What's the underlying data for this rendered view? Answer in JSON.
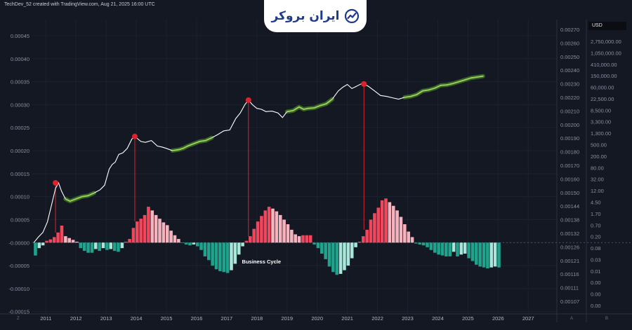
{
  "header": {
    "credit": "TechDev_52 created with TradingView.com, Aug 21, 2025 16:00 UTC",
    "brand_name": "ایران بروکر",
    "currency_label": "USD"
  },
  "colors": {
    "background": "#141823",
    "positive_dark": "#f0475d",
    "positive_light": "#f5b3bd",
    "negative_dark": "#1fa38c",
    "negative_light": "#a8e6da",
    "price_line": "#ffffff",
    "highlight": "#9bd65a",
    "peak_marker": "#e0202c"
  },
  "chart_data": {
    "type": "bar",
    "annotation": "Business Cycle",
    "x_tick_labels": [
      "2011",
      "2012",
      "2013",
      "2014",
      "2015",
      "2016",
      "2017",
      "2018",
      "2019",
      "2020",
      "2021",
      "2022",
      "2023",
      "2024",
      "2025",
      "2026",
      "2027"
    ],
    "xlim": [
      2010.55,
      2027.95
    ],
    "left_axis": {
      "ticks": [
        "0.00045",
        "0.00040",
        "0.00035",
        "0.00030",
        "0.00025",
        "0.00020",
        "0.00015",
        "0.00010",
        "0.00005",
        "-0.00000",
        "-0.00005",
        "-0.00010",
        "-0.00015"
      ],
      "ylim": [
        -0.000155,
        0.000485
      ]
    },
    "middle_axis_ticks": [
      "0.00270",
      "0.00260",
      "0.00250",
      "0.00240",
      "0.00230",
      "0.00220",
      "0.00210",
      "0.00200",
      "0.00190",
      "0.00180",
      "0.00170",
      "0.00160",
      "0.00150",
      "0.00144",
      "0.00138",
      "0.00132",
      "0.00126",
      "0.00121",
      "0.00116",
      "0.00111",
      "0.00107"
    ],
    "right_axis_ticks": [
      "2,750,000.00",
      "1,050,000.00",
      "410,000.00",
      "150,000.00",
      "60,000.00",
      "22,500.00",
      "8,500.00",
      "3,300.00",
      "1,300.00",
      "500.00",
      "200.00",
      "80.00",
      "32.00",
      "12.00",
      "4.50",
      "1.70",
      "0.70",
      "0.20",
      "0.08",
      "0.03",
      "0.01",
      "0.00",
      "0.00",
      "0.00"
    ],
    "corner_labels": [
      "Z",
      "A",
      "B"
    ],
    "series": [
      {
        "type": "bar",
        "x_start": 2010.6,
        "bar_step": 0.125,
        "values": [
          -2.8e-05,
          -1.2e-05,
          -6e-06,
          4e-06,
          7e-06,
          1.2e-05,
          2.2e-05,
          3.7e-05,
          1.4e-05,
          1e-05,
          6e-06,
          2e-06,
          -1.2e-05,
          -1.8e-05,
          -2.2e-05,
          -2.2e-05,
          -1.4e-05,
          -1.8e-05,
          -1.2e-05,
          -1.6e-05,
          -1.4e-05,
          -1.8e-05,
          -2e-05,
          -1.2e-05,
          2e-06,
          8e-06,
          3.2e-05,
          4.6e-05,
          5.2e-05,
          6e-05,
          7.8e-05,
          7e-05,
          6e-05,
          5.2e-05,
          4.4e-05,
          3.8e-05,
          2.6e-05,
          1.6e-05,
          8e-06,
          -1e-06,
          -4e-06,
          -6e-06,
          -4e-06,
          -8e-06,
          -1.6e-05,
          -3e-05,
          -3.8e-05,
          -5e-05,
          -5.8e-05,
          -6.2e-05,
          -6.4e-05,
          -6.6e-05,
          -6e-05,
          -4.6e-05,
          -2.6e-05,
          -8e-06,
          4e-06,
          1.4e-05,
          3e-05,
          4.6e-05,
          5.8e-05,
          7e-05,
          7.8e-05,
          7.4e-05,
          6.8e-05,
          6e-05,
          5e-05,
          4e-05,
          2.8e-05,
          1.8e-05,
          1.4e-05,
          1.6e-05,
          1.6e-05,
          1.6e-05,
          -4e-06,
          -1.2e-05,
          -2.4e-05,
          -3.6e-05,
          -5.2e-05,
          -6.4e-05,
          -7e-05,
          -6.8e-05,
          -6e-05,
          -5e-05,
          -3.4e-05,
          -1e-05,
          2e-06,
          1.4e-05,
          2.8e-05,
          5e-05,
          6.4e-05,
          7.6e-05,
          9.2e-05,
          9.6e-05,
          8.8e-05,
          8e-05,
          7e-05,
          5.6e-05,
          4e-05,
          2.4e-05,
          1.2e-05,
          -2e-06,
          -4e-06,
          -6e-06,
          -1e-05,
          -1.6e-05,
          -2.2e-05,
          -2.6e-05,
          -2.8e-05,
          -3e-05,
          -3e-05,
          -2e-05,
          -3e-05,
          -2.6e-05,
          -2.4e-05,
          -3.4e-05,
          -4e-05,
          -4.8e-05,
          -5.2e-05,
          -5.4e-05,
          -5.6e-05,
          -5.4e-05,
          -5.2e-05,
          -5.4e-05
        ]
      },
      {
        "type": "line",
        "x": [
          2010.6,
          2010.75,
          2010.9,
          2011.05,
          2011.2,
          2011.32,
          2011.42,
          2011.52,
          2011.65,
          2011.8,
          2012.0,
          2012.2,
          2012.4,
          2012.6,
          2012.8,
          2012.95,
          2013.1,
          2013.2,
          2013.3,
          2013.42,
          2013.55,
          2013.7,
          2013.85,
          2013.95,
          2014.15,
          2014.3,
          2014.5,
          2014.7,
          2014.85,
          2015.0,
          2015.2,
          2015.4,
          2015.55,
          2015.7,
          2015.9,
          2016.1,
          2016.3,
          2016.5,
          2016.7,
          2016.9,
          2017.1,
          2017.3,
          2017.45,
          2017.6,
          2017.72,
          2017.85,
          2018.0,
          2018.15,
          2018.3,
          2018.5,
          2018.7,
          2018.85,
          2019.0,
          2019.2,
          2019.4,
          2019.55,
          2019.7,
          2019.9,
          2020.1,
          2020.3,
          2020.5,
          2020.7,
          2020.85,
          2021.0,
          2021.15,
          2021.3,
          2021.45,
          2021.55,
          2021.7,
          2021.9,
          2022.1,
          2022.3,
          2022.5,
          2022.7,
          2022.9,
          2023.1,
          2023.3,
          2023.5,
          2023.7,
          2023.9,
          2024.1,
          2024.3,
          2024.5,
          2024.7,
          2024.9,
          2025.1,
          2025.3,
          2025.5
        ],
        "y": [
          0.0,
          1.2e-05,
          2.2e-05,
          4.5e-05,
          8.5e-05,
          0.000118,
          0.00013,
          0.000112,
          9.5e-05,
          9e-05,
          9.5e-05,
          0.0001,
          0.000102,
          0.000108,
          0.000115,
          0.000125,
          0.00016,
          0.00017,
          0.000175,
          0.000192,
          0.000195,
          0.000205,
          0.000225,
          0.000231,
          0.00022,
          0.000218,
          0.000222,
          0.00021,
          0.000208,
          0.000205,
          0.0002,
          0.000202,
          0.000205,
          0.00021,
          0.000215,
          0.00022,
          0.000222,
          0.000228,
          0.000235,
          0.000243,
          0.000245,
          0.00027,
          0.000282,
          0.0003,
          0.00031,
          0.0003,
          0.000292,
          0.00029,
          0.000285,
          0.000286,
          0.000282,
          0.000272,
          0.000285,
          0.000287,
          0.000295,
          0.00029,
          0.000292,
          0.000293,
          0.000298,
          0.000302,
          0.000312,
          0.00033,
          0.000338,
          0.000344,
          0.000335,
          0.00034,
          0.000345,
          0.000345,
          0.00034,
          0.00033,
          0.00032,
          0.000318,
          0.000315,
          0.000312,
          0.000316,
          0.000318,
          0.000322,
          0.00033,
          0.000332,
          0.000336,
          0.000342,
          0.000343,
          0.000346,
          0.00035,
          0.000354,
          0.000358,
          0.00036,
          0.000362
        ]
      },
      {
        "type": "line-highlight",
        "segments": [
          [
            2011.65,
            2012.6
          ],
          [
            2015.2,
            2016.65
          ],
          [
            2018.9,
            2020.65
          ],
          [
            2022.9,
            2025.55
          ]
        ]
      },
      {
        "type": "scatter",
        "x": [
          2011.32,
          2013.95,
          2017.72,
          2021.55
        ],
        "y": [
          0.00013,
          0.000231,
          0.00031,
          0.000345
        ]
      }
    ]
  }
}
